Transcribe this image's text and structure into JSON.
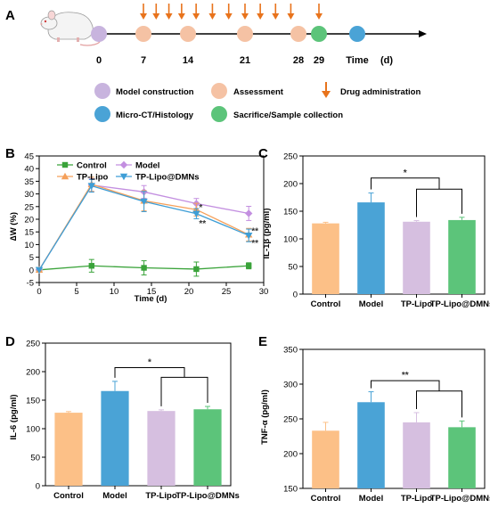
{
  "panel_a": {
    "letter": "A",
    "timeline_labels": [
      "0",
      "7",
      "14",
      "21",
      "28",
      "29",
      "Time",
      "(d)"
    ],
    "markers": [
      {
        "day": 0,
        "kind": "model"
      },
      {
        "day": 7,
        "kind": "assessment"
      },
      {
        "day": 14,
        "kind": "assessment"
      },
      {
        "day": 21,
        "kind": "assessment"
      },
      {
        "day": 28,
        "kind": "assessment"
      },
      {
        "day": 29,
        "kind": "sacrifice"
      },
      {
        "day": 35,
        "kind": "microct"
      }
    ],
    "drug_days": [
      7,
      9,
      11,
      13,
      15,
      17,
      19,
      21,
      23,
      25,
      27,
      29
    ],
    "legend": [
      {
        "kind": "model",
        "label": "Model construction"
      },
      {
        "kind": "assessment",
        "label": "Assessment"
      },
      {
        "kind": "drug",
        "label": "Drug administration"
      },
      {
        "kind": "microct",
        "label": "Micro-CT/Histology"
      },
      {
        "kind": "sacrifice",
        "label": "Sacrifice/Sample collection"
      }
    ],
    "colors": {
      "model": "#c8b4de",
      "assessment": "#f5c2a4",
      "microct": "#4aa3d6",
      "sacrifice": "#5cc47a",
      "drug": "#e8731c",
      "mouse": "#f2f2f2"
    }
  },
  "chart_data": [
    {
      "panel": "B",
      "type": "line",
      "xlabel": "Time (d)",
      "ylabel": "∆W (%)",
      "xlim": [
        0,
        30
      ],
      "ylim": [
        -5,
        45
      ],
      "xticks": [
        "0",
        "5",
        "10",
        "15",
        "20",
        "25",
        "30"
      ],
      "yticks": [
        "-5",
        "0",
        "5",
        "10",
        "15",
        "20",
        "25",
        "30",
        "35",
        "40",
        "45"
      ],
      "legend_position": "top",
      "series": [
        {
          "name": "Control",
          "color": "#3aa33a",
          "marker": "square",
          "x": [
            0,
            7,
            14,
            21,
            28
          ],
          "y": [
            0,
            1.6,
            0.8,
            0.3,
            1.6
          ],
          "err": [
            0,
            2.5,
            2.8,
            2.8,
            1.2
          ]
        },
        {
          "name": "Model",
          "color": "#c38fe0",
          "marker": "diamond",
          "x": [
            0,
            7,
            14,
            21,
            28
          ],
          "y": [
            0,
            33.5,
            30.8,
            26.2,
            22.3
          ],
          "err": [
            0,
            2.5,
            2.5,
            2.0,
            2.8
          ]
        },
        {
          "name": "TP-Lipo",
          "color": "#f5a05a",
          "marker": "triangle-up",
          "x": [
            0,
            7,
            14,
            21,
            28
          ],
          "y": [
            0,
            33.8,
            27.3,
            23.8,
            13.9
          ],
          "err": [
            0,
            2.8,
            4.0,
            2.5,
            2.5
          ]
        },
        {
          "name": "TP-Lipo@DMNs",
          "color": "#3e9ed6",
          "marker": "triangle-down",
          "x": [
            0,
            7,
            14,
            21,
            28
          ],
          "y": [
            0,
            33.2,
            27.0,
            22.2,
            13.6
          ],
          "err": [
            0,
            2.5,
            4.0,
            2.0,
            2.5
          ]
        }
      ],
      "annotations": [
        {
          "x": 21,
          "y": 25.0,
          "text": "*"
        },
        {
          "x": 21,
          "y": 18.6,
          "text": "**"
        },
        {
          "x": 28,
          "y": 15.6,
          "text": "**"
        },
        {
          "x": 28,
          "y": 10.8,
          "text": "**"
        }
      ]
    },
    {
      "panel": "C",
      "type": "bar",
      "categories": [
        "Control",
        "Model",
        "TP-Lipo",
        "TP-Lipo@DMNs"
      ],
      "values": [
        128,
        166,
        131,
        134
      ],
      "errors": [
        2,
        17,
        2,
        5
      ],
      "colors": [
        "#fcc087",
        "#4aa3d6",
        "#d6bfe0",
        "#5cc47a"
      ],
      "ylabel": "IL-1β (pg/ml)",
      "ylim": [
        0,
        250
      ],
      "yticks": [
        "0",
        "50",
        "100",
        "150",
        "200",
        "250"
      ],
      "significance": {
        "text": "*",
        "bracket_top": 210,
        "sub_bracket": 190
      }
    },
    {
      "panel": "D",
      "type": "bar",
      "categories": [
        "Control",
        "Model",
        "TP-Lipo",
        "TP-Lipo@DMNs"
      ],
      "values": [
        128,
        166,
        131,
        134
      ],
      "errors": [
        2,
        17,
        2,
        5
      ],
      "colors": [
        "#fcc087",
        "#4aa3d6",
        "#d6bfe0",
        "#5cc47a"
      ],
      "ylabel": "IL-6 (pg/ml)",
      "ylim": [
        0,
        250
      ],
      "yticks": [
        "0",
        "50",
        "100",
        "150",
        "200",
        "250"
      ],
      "significance": {
        "text": "*",
        "bracket_top": 207,
        "sub_bracket": 190
      }
    },
    {
      "panel": "E",
      "type": "bar",
      "categories": [
        "Control",
        "Model",
        "TP-Lipo",
        "TP-Lipo@DMNs"
      ],
      "values": [
        233,
        274,
        245,
        238
      ],
      "errors": [
        12,
        15,
        14,
        9
      ],
      "colors": [
        "#fcc087",
        "#4aa3d6",
        "#d6bfe0",
        "#5cc47a"
      ],
      "ylabel": "TNF-α (pg/ml)",
      "ylim": [
        150,
        350
      ],
      "yticks": [
        "150",
        "200",
        "250",
        "300",
        "350"
      ],
      "significance": {
        "text": "**",
        "bracket_top": 305,
        "sub_bracket": 290
      }
    }
  ],
  "panel_letters": [
    "B",
    "C",
    "D",
    "E"
  ]
}
